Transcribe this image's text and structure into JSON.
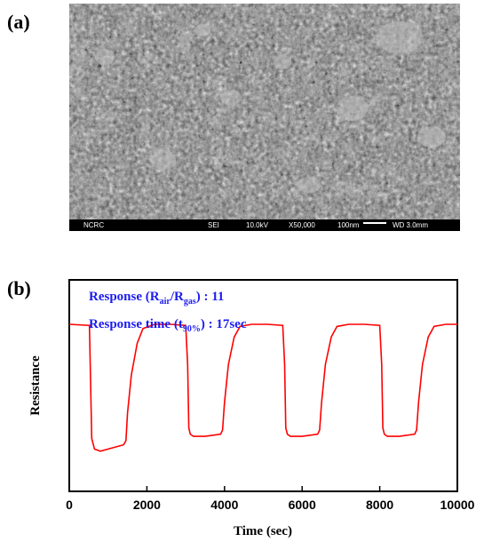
{
  "figure": {
    "panel_a_label": "(a)",
    "panel_b_label": "(b)"
  },
  "sem": {
    "instrument": "NCRC",
    "detector": "SEI",
    "voltage": "10.0kV",
    "magnification": "X50,000",
    "scale": "100nm",
    "working_distance": "WD 3.0mm"
  },
  "chart_data": {
    "type": "line",
    "xlabel": "Time (sec)",
    "ylabel": "Resistance",
    "xlim": [
      0,
      10000
    ],
    "xticks": [
      0,
      2000,
      4000,
      6000,
      8000,
      10000
    ],
    "yticks_shown": false,
    "annotations": {
      "line1_prefix": "Response  (R",
      "line1_sub1": "air",
      "line1_mid": "/R",
      "line1_sub2": "gas",
      "line1_suffix": ") : 11",
      "line2_prefix": "Response time (t",
      "line2_sub": "90%",
      "line2_suffix": ") : 17sec"
    },
    "series": [
      {
        "color": "#ff0000",
        "x": [
          0,
          520,
          540,
          580,
          650,
          800,
          1000,
          1200,
          1400,
          1460,
          1500,
          1600,
          1750,
          1900,
          2200,
          2600,
          3000,
          3050,
          3080,
          3120,
          3200,
          3500,
          3900,
          3950,
          4000,
          4100,
          4250,
          4400,
          4700,
          5100,
          5500,
          5550,
          5580,
          5620,
          5700,
          6000,
          6400,
          6450,
          6500,
          6600,
          6750,
          6900,
          7200,
          7600,
          8000,
          8050,
          8080,
          8120,
          8200,
          8500,
          8900,
          8950,
          9000,
          9100,
          9250,
          9400,
          9700,
          10000
        ],
        "y": [
          0.79,
          0.785,
          0.6,
          0.25,
          0.2,
          0.19,
          0.2,
          0.21,
          0.22,
          0.24,
          0.37,
          0.55,
          0.7,
          0.77,
          0.79,
          0.79,
          0.785,
          0.6,
          0.3,
          0.27,
          0.26,
          0.26,
          0.27,
          0.29,
          0.42,
          0.6,
          0.73,
          0.78,
          0.79,
          0.79,
          0.785,
          0.6,
          0.3,
          0.27,
          0.26,
          0.26,
          0.27,
          0.29,
          0.42,
          0.6,
          0.73,
          0.78,
          0.79,
          0.79,
          0.785,
          0.6,
          0.3,
          0.27,
          0.26,
          0.26,
          0.27,
          0.29,
          0.42,
          0.6,
          0.73,
          0.78,
          0.79,
          0.79
        ]
      }
    ]
  }
}
